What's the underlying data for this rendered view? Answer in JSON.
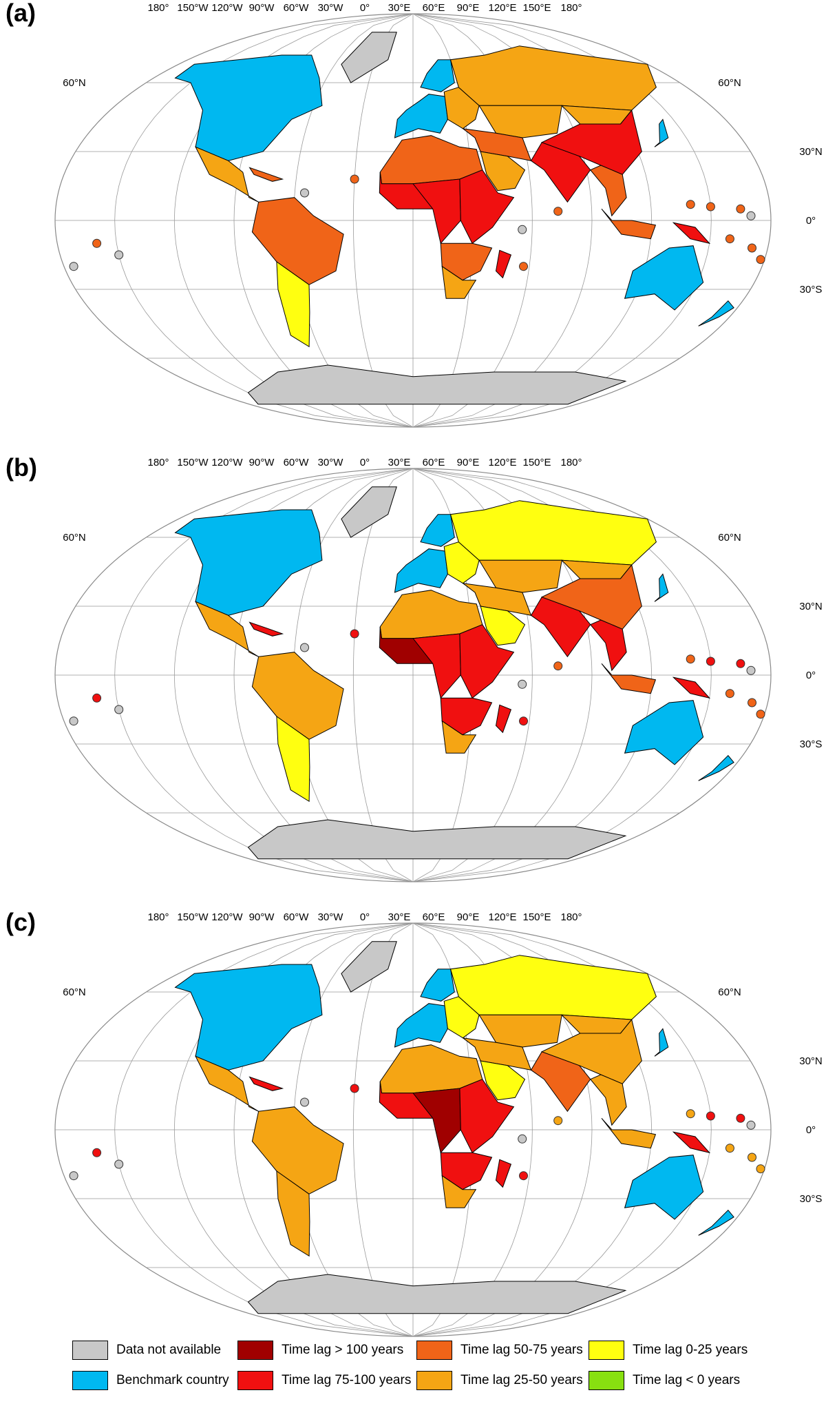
{
  "panels": [
    {
      "label": "(a)",
      "palette": {
        "na": "na",
        "north_am": "bench",
        "central_am": "lag25_50",
        "caribbean": "lag50_75",
        "south_am_n": "lag50_75",
        "south_am_s": "lag0_25",
        "europe": "bench",
        "scandinavia": "bench",
        "east_europe": "lag25_50",
        "russia": "lag25_50",
        "central_asia": "lag25_50",
        "middle_east": "lag50_75",
        "arabia": "lag25_50",
        "north_africa": "lag50_75",
        "west_africa": "lag75_100",
        "central_africa": "lag75_100",
        "east_africa": "lag75_100",
        "southern_africa": "lag50_75",
        "south_africa": "lag25_50",
        "madagascar": "lag75_100",
        "south_asia": "lag75_100",
        "china": "lag75_100",
        "mongolia": "lag25_50",
        "se_asia": "lag50_75",
        "indonesia": "lag50_75",
        "new_guinea": "lag75_100",
        "australia": "bench",
        "new_zealand": "bench",
        "japan": "bench",
        "greenland": "na",
        "antarctica": "na"
      }
    },
    {
      "label": "(b)",
      "palette": {
        "na": "na",
        "north_am": "bench",
        "central_am": "lag25_50",
        "caribbean": "lag75_100",
        "south_am_n": "lag25_50",
        "south_am_s": "lag0_25",
        "europe": "bench",
        "scandinavia": "bench",
        "east_europe": "lag0_25",
        "russia": "lag0_25",
        "central_asia": "lag25_50",
        "middle_east": "lag25_50",
        "arabia": "lag0_25",
        "north_africa": "lag25_50",
        "west_africa": "lag_gt100",
        "central_africa": "lag75_100",
        "east_africa": "lag75_100",
        "southern_africa": "lag75_100",
        "south_africa": "lag25_50",
        "madagascar": "lag75_100",
        "south_asia": "lag75_100",
        "china": "lag50_75",
        "mongolia": "lag25_50",
        "se_asia": "lag75_100",
        "indonesia": "lag50_75",
        "new_guinea": "lag75_100",
        "australia": "bench",
        "new_zealand": "bench",
        "japan": "bench",
        "greenland": "na",
        "antarctica": "na"
      }
    },
    {
      "label": "(c)",
      "palette": {
        "na": "na",
        "north_am": "bench",
        "central_am": "lag25_50",
        "caribbean": "lag75_100",
        "south_am_n": "lag25_50",
        "south_am_s": "lag25_50",
        "europe": "bench",
        "scandinavia": "bench",
        "east_europe": "lag0_25",
        "russia": "lag0_25",
        "central_asia": "lag25_50",
        "middle_east": "lag25_50",
        "arabia": "lag0_25",
        "north_africa": "lag25_50",
        "west_africa": "lag75_100",
        "central_africa": "lag_gt100",
        "east_africa": "lag75_100",
        "southern_africa": "lag75_100",
        "south_africa": "lag25_50",
        "madagascar": "lag75_100",
        "south_asia": "lag50_75",
        "china": "lag25_50",
        "mongolia": "lag25_50",
        "se_asia": "lag25_50",
        "indonesia": "lag25_50",
        "new_guinea": "lag75_100",
        "australia": "bench",
        "new_zealand": "bench",
        "japan": "bench",
        "greenland": "na",
        "antarctica": "na"
      }
    }
  ],
  "longitude_ticks": [
    "180°",
    "150°W",
    "120°W",
    "90°W",
    "60°W",
    "30°W",
    "0°",
    "30°E",
    "60°E",
    "90°E",
    "120°E",
    "150°E",
    "180°"
  ],
  "latitude_ticks": [
    "60°N",
    "30°N",
    "0°",
    "30°S"
  ],
  "colors": {
    "na": "#c8c8c8",
    "bench": "#00b8f0",
    "lag_gt100": "#a00000",
    "lag75_100": "#f01010",
    "lag50_75": "#f06418",
    "lag25_50": "#f5a514",
    "lag0_25": "#ffff10",
    "lag_lt0": "#88e010"
  },
  "legend": [
    {
      "key": "na",
      "label": "Data not available"
    },
    {
      "key": "lag_gt100",
      "label": "Time lag > 100 years"
    },
    {
      "key": "lag50_75",
      "label": "Time lag 50-75 years"
    },
    {
      "key": "lag0_25",
      "label": "Time lag 0-25 years"
    },
    {
      "key": "bench",
      "label": "Benchmark country"
    },
    {
      "key": "lag75_100",
      "label": "Time lag 75-100 years"
    },
    {
      "key": "lag25_50",
      "label": "Time lag 25-50 years"
    },
    {
      "key": "lag_lt0",
      "label": "Time lag < 0 years"
    }
  ]
}
